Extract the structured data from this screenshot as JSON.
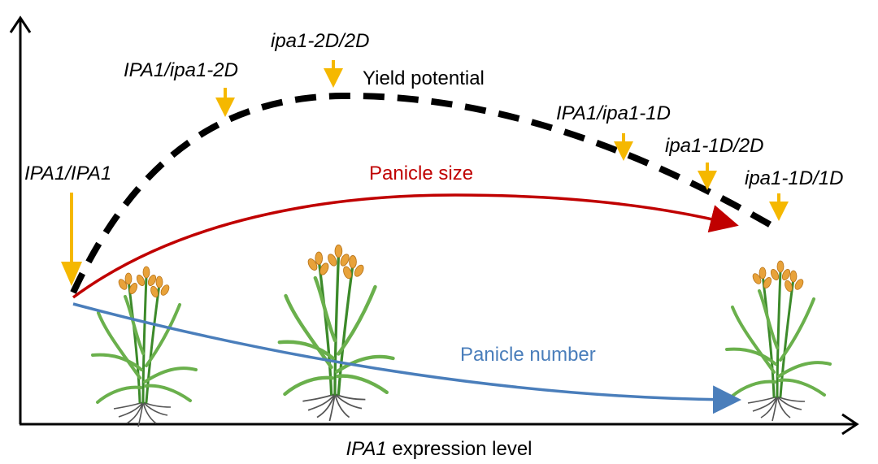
{
  "axes": {
    "x_label_gene": "IPA1",
    "x_label_rest": " expression level"
  },
  "curves": {
    "yield": "Yield potential",
    "panicle_size": "Panicle size",
    "panicle_number": "Panicle number"
  },
  "genotypes": {
    "g1": "IPA1/IPA1",
    "g2": "IPA1/ipa1-2D",
    "g3": "ipa1-2D/2D",
    "g4": "IPA1/ipa1-1D",
    "g5": "ipa1-1D/2D",
    "g6": "ipa1-1D/1D"
  },
  "colors": {
    "axis": "#000000",
    "yield": "#000000",
    "panicle_size": "#c00000",
    "panicle_number": "#4a7ebb",
    "arrow_marker": "#f5b800",
    "stem_green": "#3c8a2a",
    "leaf_green": "#6ab04c",
    "panicle_orange": "#e8a23a",
    "root": "#555555"
  },
  "illustrations": [
    "rice-plant-icon",
    "rice-plant-icon",
    "rice-plant-icon"
  ]
}
